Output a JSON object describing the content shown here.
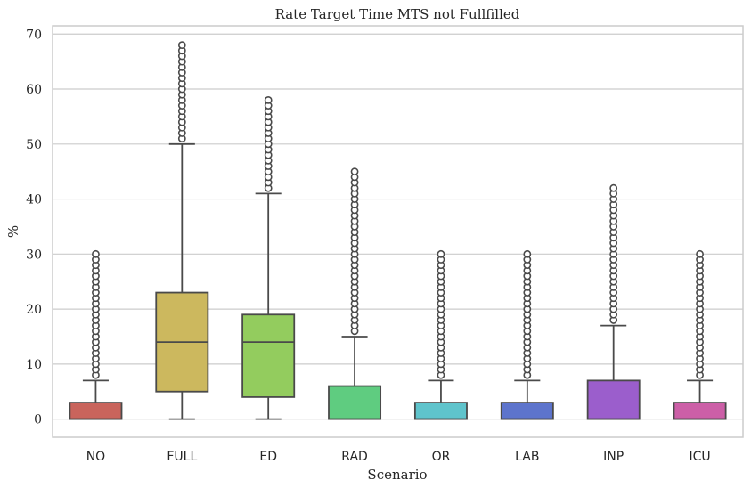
{
  "chart_data": {
    "type": "box",
    "title": "Rate Target Time MTS not Fullfilled",
    "xlabel": "Scenario",
    "ylabel": "%",
    "ylim": [
      -3.3,
      71.5
    ],
    "yticks": [
      0,
      10,
      20,
      30,
      40,
      50,
      60,
      70
    ],
    "grid": "horizontal",
    "categories": [
      "NO",
      "FULL",
      "ED",
      "RAD",
      "OR",
      "LAB",
      "INP",
      "ICU"
    ],
    "boxes": [
      {
        "category": "NO",
        "color": "#c9645c",
        "q1": 0,
        "median": 0,
        "q3": 3,
        "whisker_low": 0,
        "whisker_high": 7,
        "outlier_min": 8,
        "outlier_max": 30
      },
      {
        "category": "FULL",
        "color": "#ccb85e",
        "q1": 5,
        "median": 14,
        "q3": 23,
        "whisker_low": 0,
        "whisker_high": 50,
        "outlier_min": 51,
        "outlier_max": 68
      },
      {
        "category": "ED",
        "color": "#93cc5e",
        "q1": 4,
        "median": 14,
        "q3": 19,
        "whisker_low": 0,
        "whisker_high": 41,
        "outlier_min": 42,
        "outlier_max": 58
      },
      {
        "category": "RAD",
        "color": "#5fcc80",
        "q1": 0,
        "median": 0,
        "q3": 6,
        "whisker_low": 0,
        "whisker_high": 15,
        "outlier_min": 16,
        "outlier_max": 45
      },
      {
        "category": "OR",
        "color": "#5fc4cc",
        "q1": 0,
        "median": 0,
        "q3": 3,
        "whisker_low": 0,
        "whisker_high": 7,
        "outlier_min": 8,
        "outlier_max": 30
      },
      {
        "category": "LAB",
        "color": "#5d74cc",
        "q1": 0,
        "median": 0,
        "q3": 3,
        "whisker_low": 0,
        "whisker_high": 7,
        "outlier_min": 8,
        "outlier_max": 30
      },
      {
        "category": "INP",
        "color": "#9b5ecc",
        "q1": 0,
        "median": 0,
        "q3": 7,
        "whisker_low": 0,
        "whisker_high": 17,
        "outlier_min": 18,
        "outlier_max": 42
      },
      {
        "category": "ICU",
        "color": "#cc5fa7",
        "q1": 0,
        "median": 0,
        "q3": 3,
        "whisker_low": 0,
        "whisker_high": 7,
        "outlier_min": 8,
        "outlier_max": 30
      }
    ]
  }
}
